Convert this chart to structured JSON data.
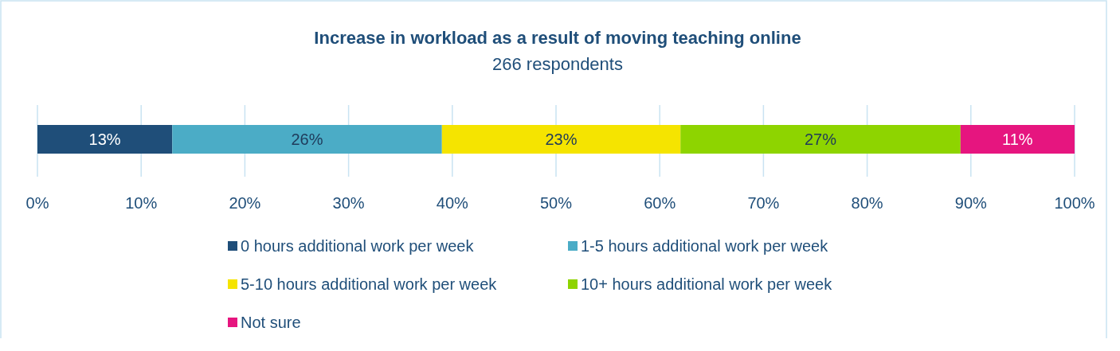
{
  "chart_data": {
    "type": "bar",
    "orientation": "horizontal",
    "stacked": true,
    "title": "Increase in workload as a result of moving teaching online",
    "subtitle": "266 respondents",
    "categories": [
      null
    ],
    "series": [
      {
        "name": "0 hours additional work per week",
        "color": "#1f4e79",
        "values": [
          13
        ],
        "value_labels": [
          "13%"
        ]
      },
      {
        "name": "1-5 hours additional work per week",
        "color": "#4bacc6",
        "values": [
          26
        ],
        "value_labels": [
          "26%"
        ]
      },
      {
        "name": "5-10 hours additional work per week",
        "color": "#f5e400",
        "values": [
          23
        ],
        "value_labels": [
          "23%"
        ]
      },
      {
        "name": "10+ hours additional work per week",
        "color": "#8ed400",
        "values": [
          27
        ],
        "value_labels": [
          "27%"
        ]
      },
      {
        "name": "Not sure",
        "color": "#e6157f",
        "values": [
          11
        ],
        "value_labels": [
          "11%"
        ]
      }
    ],
    "xlim": [
      0,
      100
    ],
    "xticks": [
      {
        "value": 0,
        "label": "0%"
      },
      {
        "value": 10,
        "label": "10%"
      },
      {
        "value": 20,
        "label": "20%"
      },
      {
        "value": 30,
        "label": "30%"
      },
      {
        "value": 40,
        "label": "40%"
      },
      {
        "value": 50,
        "label": "50%"
      },
      {
        "value": 60,
        "label": "60%"
      },
      {
        "value": 70,
        "label": "70%"
      },
      {
        "value": 80,
        "label": "80%"
      },
      {
        "value": 90,
        "label": "90%"
      },
      {
        "value": 100,
        "label": "100%"
      }
    ],
    "grid": "x",
    "legend": "bottom"
  }
}
